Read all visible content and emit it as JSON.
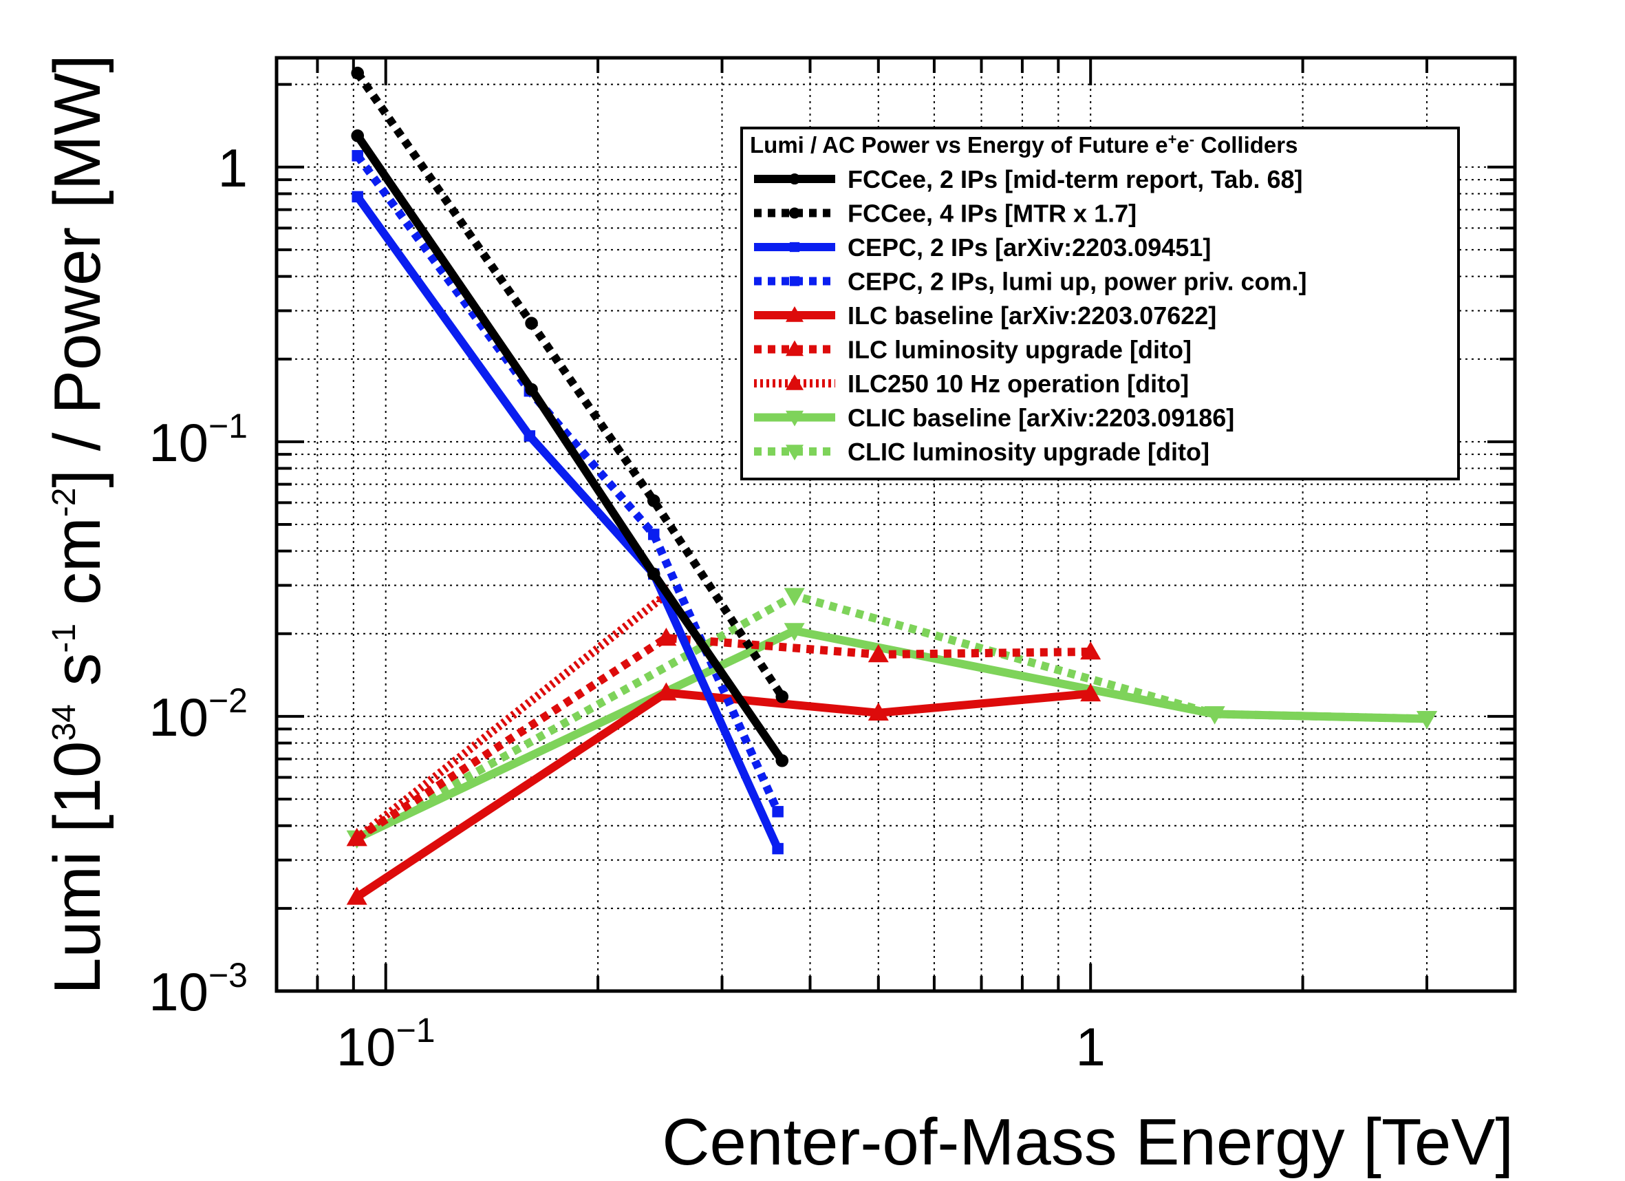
{
  "chart_data": {
    "type": "line",
    "xscale": "log",
    "yscale": "log",
    "xlim": [
      0.07,
      4.0
    ],
    "ylim": [
      0.001,
      2.5
    ],
    "grid": true,
    "xlabel": "Center-of-Mass Energy [TeV]",
    "ylabel_parts": {
      "pre": "Lumi [10",
      "sup1": "34",
      "mid1": " s",
      "sup2": "-1",
      "mid2": " cm",
      "sup3": "-2",
      "post": "] / Power [MW]"
    },
    "x_ticks": [
      {
        "value": 0.1,
        "base": "10",
        "exp": "−1"
      },
      {
        "value": 1,
        "base": "1",
        "exp": ""
      }
    ],
    "y_ticks": [
      {
        "value": 0.001,
        "base": "10",
        "exp": "−3"
      },
      {
        "value": 0.01,
        "base": "10",
        "exp": "−2"
      },
      {
        "value": 0.1,
        "base": "10",
        "exp": "−1"
      },
      {
        "value": 1,
        "base": "1",
        "exp": ""
      }
    ],
    "legend": {
      "title_pre": "Lumi / AC Power vs Energy of Future e",
      "title_sup1": "+",
      "title_mid": "e",
      "title_sup2": "-",
      "title_post": " Colliders",
      "position": "top-right"
    },
    "series": [
      {
        "name": "FCCee, 2 IPs [mid-term report, Tab. 68]",
        "color": "#000000",
        "dash": "solid",
        "marker": "circle",
        "x": [
          0.0912,
          0.161,
          0.24,
          0.365
        ],
        "y": [
          1.3,
          0.155,
          0.033,
          0.0069
        ]
      },
      {
        "name": "FCCee, 4 IPs [MTR x 1.7]",
        "color": "#000000",
        "dash": "dotted",
        "marker": "circle",
        "x": [
          0.0912,
          0.161,
          0.24,
          0.365
        ],
        "y": [
          2.2,
          0.27,
          0.061,
          0.0118
        ]
      },
      {
        "name": "CEPC, 2 IPs [arXiv:2203.09451]",
        "color": "#0a1ef0",
        "dash": "solid",
        "marker": "square",
        "x": [
          0.0912,
          0.16,
          0.24,
          0.36
        ],
        "y": [
          0.78,
          0.105,
          0.033,
          0.0033
        ]
      },
      {
        "name": "CEPC, 2 IPs, lumi up, power priv. com.]",
        "color": "#0a1ef0",
        "dash": "dotted",
        "marker": "square",
        "x": [
          0.0912,
          0.16,
          0.24,
          0.36
        ],
        "y": [
          1.1,
          0.153,
          0.046,
          0.0045
        ]
      },
      {
        "name": "ILC baseline [arXiv:2203.07622]",
        "color": "#dd0b0b",
        "dash": "solid",
        "marker": "triangle-up",
        "x": [
          0.091,
          0.25,
          0.5,
          1.0
        ],
        "y": [
          0.0022,
          0.0122,
          0.0103,
          0.0121
        ]
      },
      {
        "name": "ILC luminosity upgrade [dito]",
        "color": "#dd0b0b",
        "dash": "dotted",
        "marker": "triangle-up",
        "x": [
          0.091,
          0.25,
          0.5,
          1.0
        ],
        "y": [
          0.0036,
          0.0193,
          0.0168,
          0.0172
        ]
      },
      {
        "name": "ILC250 10 Hz operation [dito]",
        "color": "#dd0b0b",
        "dash": "fine",
        "marker": "triangle-up",
        "x": [
          0.091,
          0.25
        ],
        "y": [
          0.0036,
          0.0278
        ]
      },
      {
        "name": "CLIC baseline [arXiv:2203.09186]",
        "color": "#7ed35a",
        "dash": "solid",
        "marker": "triangle-down",
        "x": [
          0.091,
          0.38,
          1.5,
          3.0
        ],
        "y": [
          0.0036,
          0.0205,
          0.0102,
          0.0098
        ]
      },
      {
        "name": "CLIC luminosity upgrade [dito]",
        "color": "#7ed35a",
        "dash": "dotted",
        "marker": "triangle-down",
        "x": [
          0.091,
          0.38,
          1.5,
          3.0
        ],
        "y": [
          0.0036,
          0.0275,
          0.0102,
          0.0098
        ]
      }
    ]
  }
}
